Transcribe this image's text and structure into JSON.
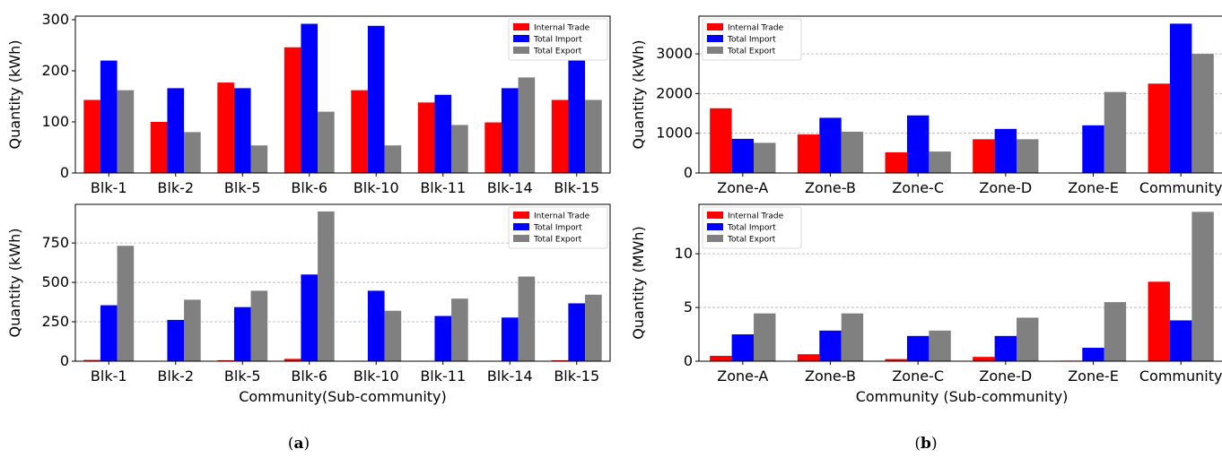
{
  "colors": {
    "internal": "#ff0000",
    "import": "#0000ff",
    "export": "#808080",
    "grid": "#b0b0b0"
  },
  "legend_position": "top-right",
  "captions": {
    "a": "a",
    "b": "b"
  },
  "chart_data": [
    {
      "id": "a-top",
      "type": "bar",
      "categories": [
        "Blk-1",
        "Blk-2",
        "Blk-5",
        "Blk-6",
        "Blk-10",
        "Blk-11",
        "Blk-14",
        "Blk-15"
      ],
      "series": [
        {
          "name": "Internal Trade",
          "values": [
            143,
            100,
            177,
            246,
            162,
            138,
            99,
            143
          ]
        },
        {
          "name": "Total Import",
          "values": [
            220,
            166,
            166,
            292,
            288,
            153,
            166,
            220
          ]
        },
        {
          "name": "Total Export",
          "values": [
            162,
            80,
            54,
            120,
            54,
            94,
            187,
            143
          ]
        }
      ],
      "ylabel": "Quantity (kWh)",
      "xlabel": "",
      "ylim": [
        0,
        307
      ],
      "yticks": [
        0,
        100,
        200,
        300
      ],
      "grid": false,
      "legend": "top-right"
    },
    {
      "id": "a-bottom",
      "type": "bar",
      "categories": [
        "Blk-1",
        "Blk-2",
        "Blk-5",
        "Blk-6",
        "Blk-10",
        "Blk-11",
        "Blk-14",
        "Blk-15"
      ],
      "series": [
        {
          "name": "Internal Trade",
          "values": [
            8,
            2,
            6,
            15,
            3,
            2,
            2,
            6
          ]
        },
        {
          "name": "Total Import",
          "values": [
            355,
            262,
            343,
            550,
            447,
            287,
            277,
            367
          ]
        },
        {
          "name": "Total Export",
          "values": [
            732,
            390,
            447,
            950,
            320,
            397,
            537,
            422
          ]
        }
      ],
      "ylabel": "Quantity (kWh)",
      "xlabel": "Community(Sub-community)",
      "ylim": [
        0,
        995
      ],
      "yticks": [
        0,
        250,
        500,
        750
      ],
      "grid": true,
      "legend": "top-right"
    },
    {
      "id": "b-top",
      "type": "bar",
      "categories": [
        "Zone-A",
        "Zone-B",
        "Zone-C",
        "Zone-D",
        "Zone-E",
        "Community"
      ],
      "series": [
        {
          "name": "Internal Trade",
          "values": [
            1630,
            970,
            520,
            850,
            0,
            2250
          ]
        },
        {
          "name": "Total Import",
          "values": [
            860,
            1390,
            1450,
            1110,
            1200,
            3760
          ]
        },
        {
          "name": "Total Export",
          "values": [
            760,
            1040,
            540,
            850,
            2040,
            3000
          ]
        }
      ],
      "ylabel": "Quantity (kWh)",
      "xlabel": "",
      "ylim": [
        0,
        3950
      ],
      "yticks": [
        0,
        1000,
        2000,
        3000
      ],
      "grid": true,
      "legend": "top-left"
    },
    {
      "id": "b-bottom",
      "type": "bar",
      "categories": [
        "Zone-A",
        "Zone-B",
        "Zone-C",
        "Zone-D",
        "Zone-E",
        "Community"
      ],
      "series": [
        {
          "name": "Internal Trade",
          "values": [
            0.5,
            0.65,
            0.2,
            0.4,
            0.05,
            7.4
          ]
        },
        {
          "name": "Total Import",
          "values": [
            2.5,
            2.85,
            2.35,
            2.35,
            1.25,
            3.8
          ]
        },
        {
          "name": "Total Export",
          "values": [
            4.45,
            4.45,
            2.85,
            4.05,
            5.5,
            13.9
          ]
        }
      ],
      "ylabel": "Quantity (MWh)",
      "xlabel": "Community (Sub-community)",
      "ylim": [
        0,
        14.6
      ],
      "yticks": [
        0,
        5,
        10
      ],
      "grid": true,
      "legend": "top-left"
    }
  ]
}
